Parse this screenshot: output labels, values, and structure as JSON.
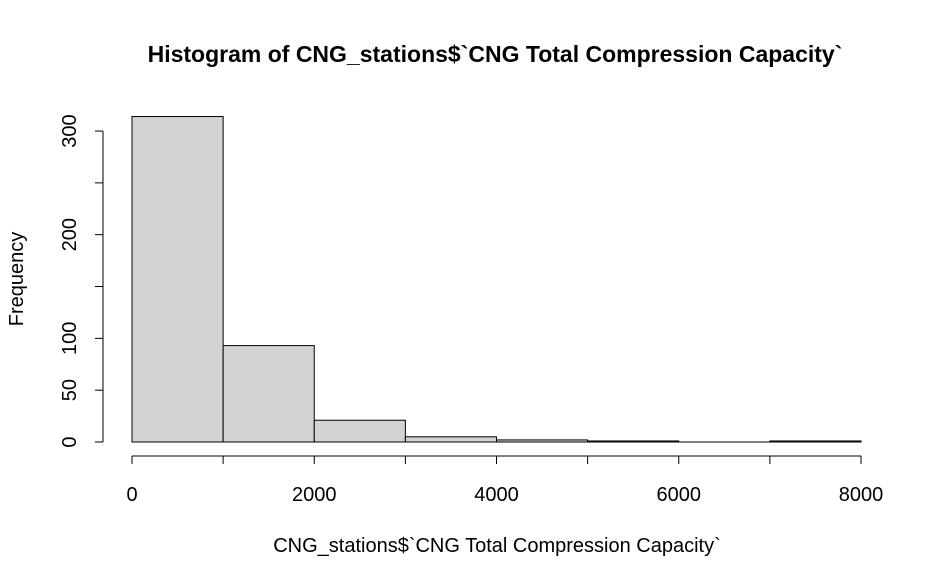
{
  "chart_data": {
    "type": "bar",
    "title": "Histogram of CNG_stations$`CNG Total Compression Capacity`",
    "xlabel": "CNG_stations$`CNG Total Compression Capacity`",
    "ylabel": "Frequency",
    "bins": [
      {
        "start": 0,
        "end": 1000,
        "count": 314
      },
      {
        "start": 1000,
        "end": 2000,
        "count": 93
      },
      {
        "start": 2000,
        "end": 3000,
        "count": 21
      },
      {
        "start": 3000,
        "end": 4000,
        "count": 5
      },
      {
        "start": 4000,
        "end": 5000,
        "count": 2
      },
      {
        "start": 5000,
        "end": 6000,
        "count": 1
      },
      {
        "start": 6000,
        "end": 7000,
        "count": 0
      },
      {
        "start": 7000,
        "end": 8000,
        "count": 1
      }
    ],
    "xlim": [
      0,
      8000
    ],
    "ylim": [
      0,
      314
    ],
    "x_ticks": [
      0,
      1000,
      2000,
      3000,
      4000,
      5000,
      6000,
      7000,
      8000
    ],
    "x_tick_labels": [
      "0",
      "2000",
      "4000",
      "6000",
      "8000"
    ],
    "y_ticks": [
      0,
      50,
      100,
      150,
      200,
      250,
      300
    ],
    "y_tick_labels": [
      "0",
      "50",
      "100",
      "200",
      "300"
    ],
    "bar_color": "#d3d3d3",
    "grid": false
  }
}
